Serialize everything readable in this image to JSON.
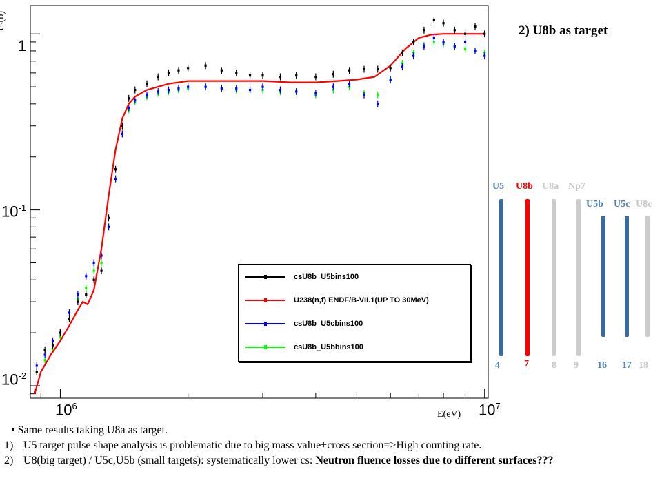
{
  "slide_title": "2) U8b as target",
  "chart_data": {
    "type": "scatter",
    "xlabel": "E(eV)",
    "ylabel": "cs(b)",
    "xscale": "log",
    "yscale": "log",
    "xlim": [
      850000,
      10200000
    ],
    "ylim": [
      0.0085,
      1.45
    ],
    "xticks": [
      "10^6",
      "10^7"
    ],
    "yticks": [
      "10^-2",
      "10^-1",
      "1"
    ],
    "legend": {
      "placement": "bottom-right",
      "entries": [
        {
          "label": "csU8b_U5bins100",
          "color": "#000000"
        },
        {
          "label": "U238(n,f) ENDF/B-VII.1(UP TO 30MeV)",
          "color": "#ff0000"
        },
        {
          "label": "csU8b_U5cbins100",
          "color": "#0000ff"
        },
        {
          "label": "csU8b_U5bbins100",
          "color": "#00ff00"
        }
      ]
    },
    "series": [
      {
        "name": "U238(n,f) ENDF/B-VII.1(UP TO 30MeV)",
        "color": "#ff0000",
        "style": "line",
        "x": [
          870000,
          900000,
          950000,
          1000000,
          1050000,
          1100000,
          1130000,
          1160000,
          1200000,
          1250000,
          1300000,
          1350000,
          1400000,
          1450000,
          1500000,
          1600000,
          1800000,
          2000000,
          2300000,
          2600000,
          3000000,
          3500000,
          4000000,
          4500000,
          5000000,
          5500000,
          6000000,
          6500000,
          7000000,
          7500000,
          8000000,
          8500000,
          9000000,
          10000000
        ],
        "y": [
          0.009,
          0.012,
          0.015,
          0.018,
          0.022,
          0.027,
          0.03,
          0.029,
          0.035,
          0.06,
          0.12,
          0.22,
          0.33,
          0.4,
          0.44,
          0.48,
          0.52,
          0.54,
          0.54,
          0.54,
          0.54,
          0.53,
          0.53,
          0.54,
          0.55,
          0.57,
          0.66,
          0.82,
          0.95,
          0.99,
          1.0,
          1.0,
          1.0,
          1.0
        ]
      },
      {
        "name": "csU8b_U5bins100",
        "color": "#000000",
        "style": "points",
        "x": [
          880000,
          920000,
          960000,
          1000000,
          1050000,
          1100000,
          1150000,
          1200000,
          1250000,
          1300000,
          1350000,
          1400000,
          1450000,
          1500000,
          1600000,
          1700000,
          1800000,
          1900000,
          2000000,
          2200000,
          2400000,
          2600000,
          2800000,
          3000000,
          3300000,
          3600000,
          4000000,
          4400000,
          4800000,
          5200000,
          5600000,
          6000000,
          6400000,
          6800000,
          7200000,
          7600000,
          8000000,
          8500000,
          9000000,
          9500000,
          10000000
        ],
        "y": [
          0.012,
          0.016,
          0.017,
          0.02,
          0.024,
          0.03,
          0.033,
          0.04,
          0.045,
          0.09,
          0.17,
          0.3,
          0.43,
          0.48,
          0.52,
          0.57,
          0.6,
          0.62,
          0.64,
          0.66,
          0.62,
          0.6,
          0.58,
          0.58,
          0.57,
          0.58,
          0.57,
          0.59,
          0.62,
          0.63,
          0.63,
          0.64,
          0.78,
          0.9,
          1.05,
          1.2,
          1.15,
          1.05,
          1.0,
          1.1,
          1.0
        ]
      },
      {
        "name": "csU8b_U5cbins100",
        "color": "#0000ff",
        "style": "points",
        "x": [
          880000,
          920000,
          960000,
          1000000,
          1050000,
          1100000,
          1150000,
          1200000,
          1250000,
          1300000,
          1350000,
          1400000,
          1450000,
          1500000,
          1600000,
          1700000,
          1800000,
          1900000,
          2000000,
          2200000,
          2400000,
          2600000,
          2800000,
          3000000,
          3300000,
          3600000,
          4000000,
          4400000,
          4800000,
          5200000,
          5600000,
          6000000,
          6400000,
          6800000,
          7200000,
          7600000,
          8000000,
          8500000,
          9000000,
          9500000,
          10000000
        ],
        "y": [
          0.013,
          0.015,
          0.018,
          0.02,
          0.026,
          0.033,
          0.042,
          0.05,
          0.055,
          0.08,
          0.15,
          0.27,
          0.38,
          0.42,
          0.45,
          0.47,
          0.48,
          0.49,
          0.5,
          0.5,
          0.49,
          0.49,
          0.48,
          0.5,
          0.48,
          0.47,
          0.46,
          0.5,
          0.52,
          0.45,
          0.4,
          0.55,
          0.65,
          0.75,
          0.85,
          0.95,
          0.9,
          0.85,
          0.9,
          0.8,
          0.75
        ]
      },
      {
        "name": "csU8b_U5bbins100",
        "color": "#00ff00",
        "style": "points",
        "x": [
          880000,
          920000,
          960000,
          1000000,
          1050000,
          1100000,
          1150000,
          1200000,
          1250000,
          1300000,
          1350000,
          1400000,
          1450000,
          1500000,
          1600000,
          1700000,
          1800000,
          1900000,
          2000000,
          2200000,
          2400000,
          2600000,
          2800000,
          3000000,
          3300000,
          3600000,
          4000000,
          4400000,
          4800000,
          5200000,
          5600000,
          6000000,
          6400000,
          6800000,
          7200000,
          7600000,
          8000000,
          8500000,
          9000000,
          9500000,
          10000000
        ],
        "y": [
          0.012,
          0.014,
          0.016,
          0.019,
          0.024,
          0.031,
          0.036,
          0.045,
          0.05,
          0.08,
          0.15,
          0.27,
          0.37,
          0.41,
          0.44,
          0.46,
          0.47,
          0.48,
          0.49,
          0.5,
          0.49,
          0.48,
          0.48,
          0.48,
          0.47,
          0.47,
          0.45,
          0.48,
          0.5,
          0.46,
          0.45,
          0.55,
          0.68,
          0.78,
          0.86,
          0.9,
          0.88,
          0.85,
          0.82,
          0.8,
          0.78
        ]
      }
    ]
  },
  "targets": {
    "labels": [
      "U5",
      "U8b",
      "U8a",
      "Np7",
      "U5b",
      "U5c",
      "U8c"
    ],
    "numbers": [
      "4",
      "7",
      "8",
      "9",
      "16",
      "17",
      "18"
    ],
    "colors": [
      "#3b6aa0",
      "#ff0000",
      "#cccccc",
      "#cccccc",
      "#3b6aa0",
      "#3b6aa0",
      "#cccccc"
    ],
    "label_colors": [
      "#4f81bd",
      "#ff0000",
      "#c8c8c8",
      "#c8c8c8",
      "#4f81bd",
      "#4f81bd",
      "#c8c8c8"
    ],
    "number_colors": [
      "#4f81bd",
      "#ff0000",
      "#c8c8c8",
      "#c8c8c8",
      "#4f81bd",
      "#4f81bd",
      "#c8c8c8"
    ]
  },
  "notes": {
    "bullet": "Same results taking U8a as target.",
    "items": [
      {
        "num": "1)",
        "text": "U5 target pulse shape analysis is problematic due to big mass value+cross section=>High counting rate."
      },
      {
        "num": "2)",
        "text_plain": "U8(big target) / U5c,U5b (small targets): systematically lower cs: ",
        "text_bold": "Neutron fluence losses due to different surfaces???"
      }
    ]
  }
}
